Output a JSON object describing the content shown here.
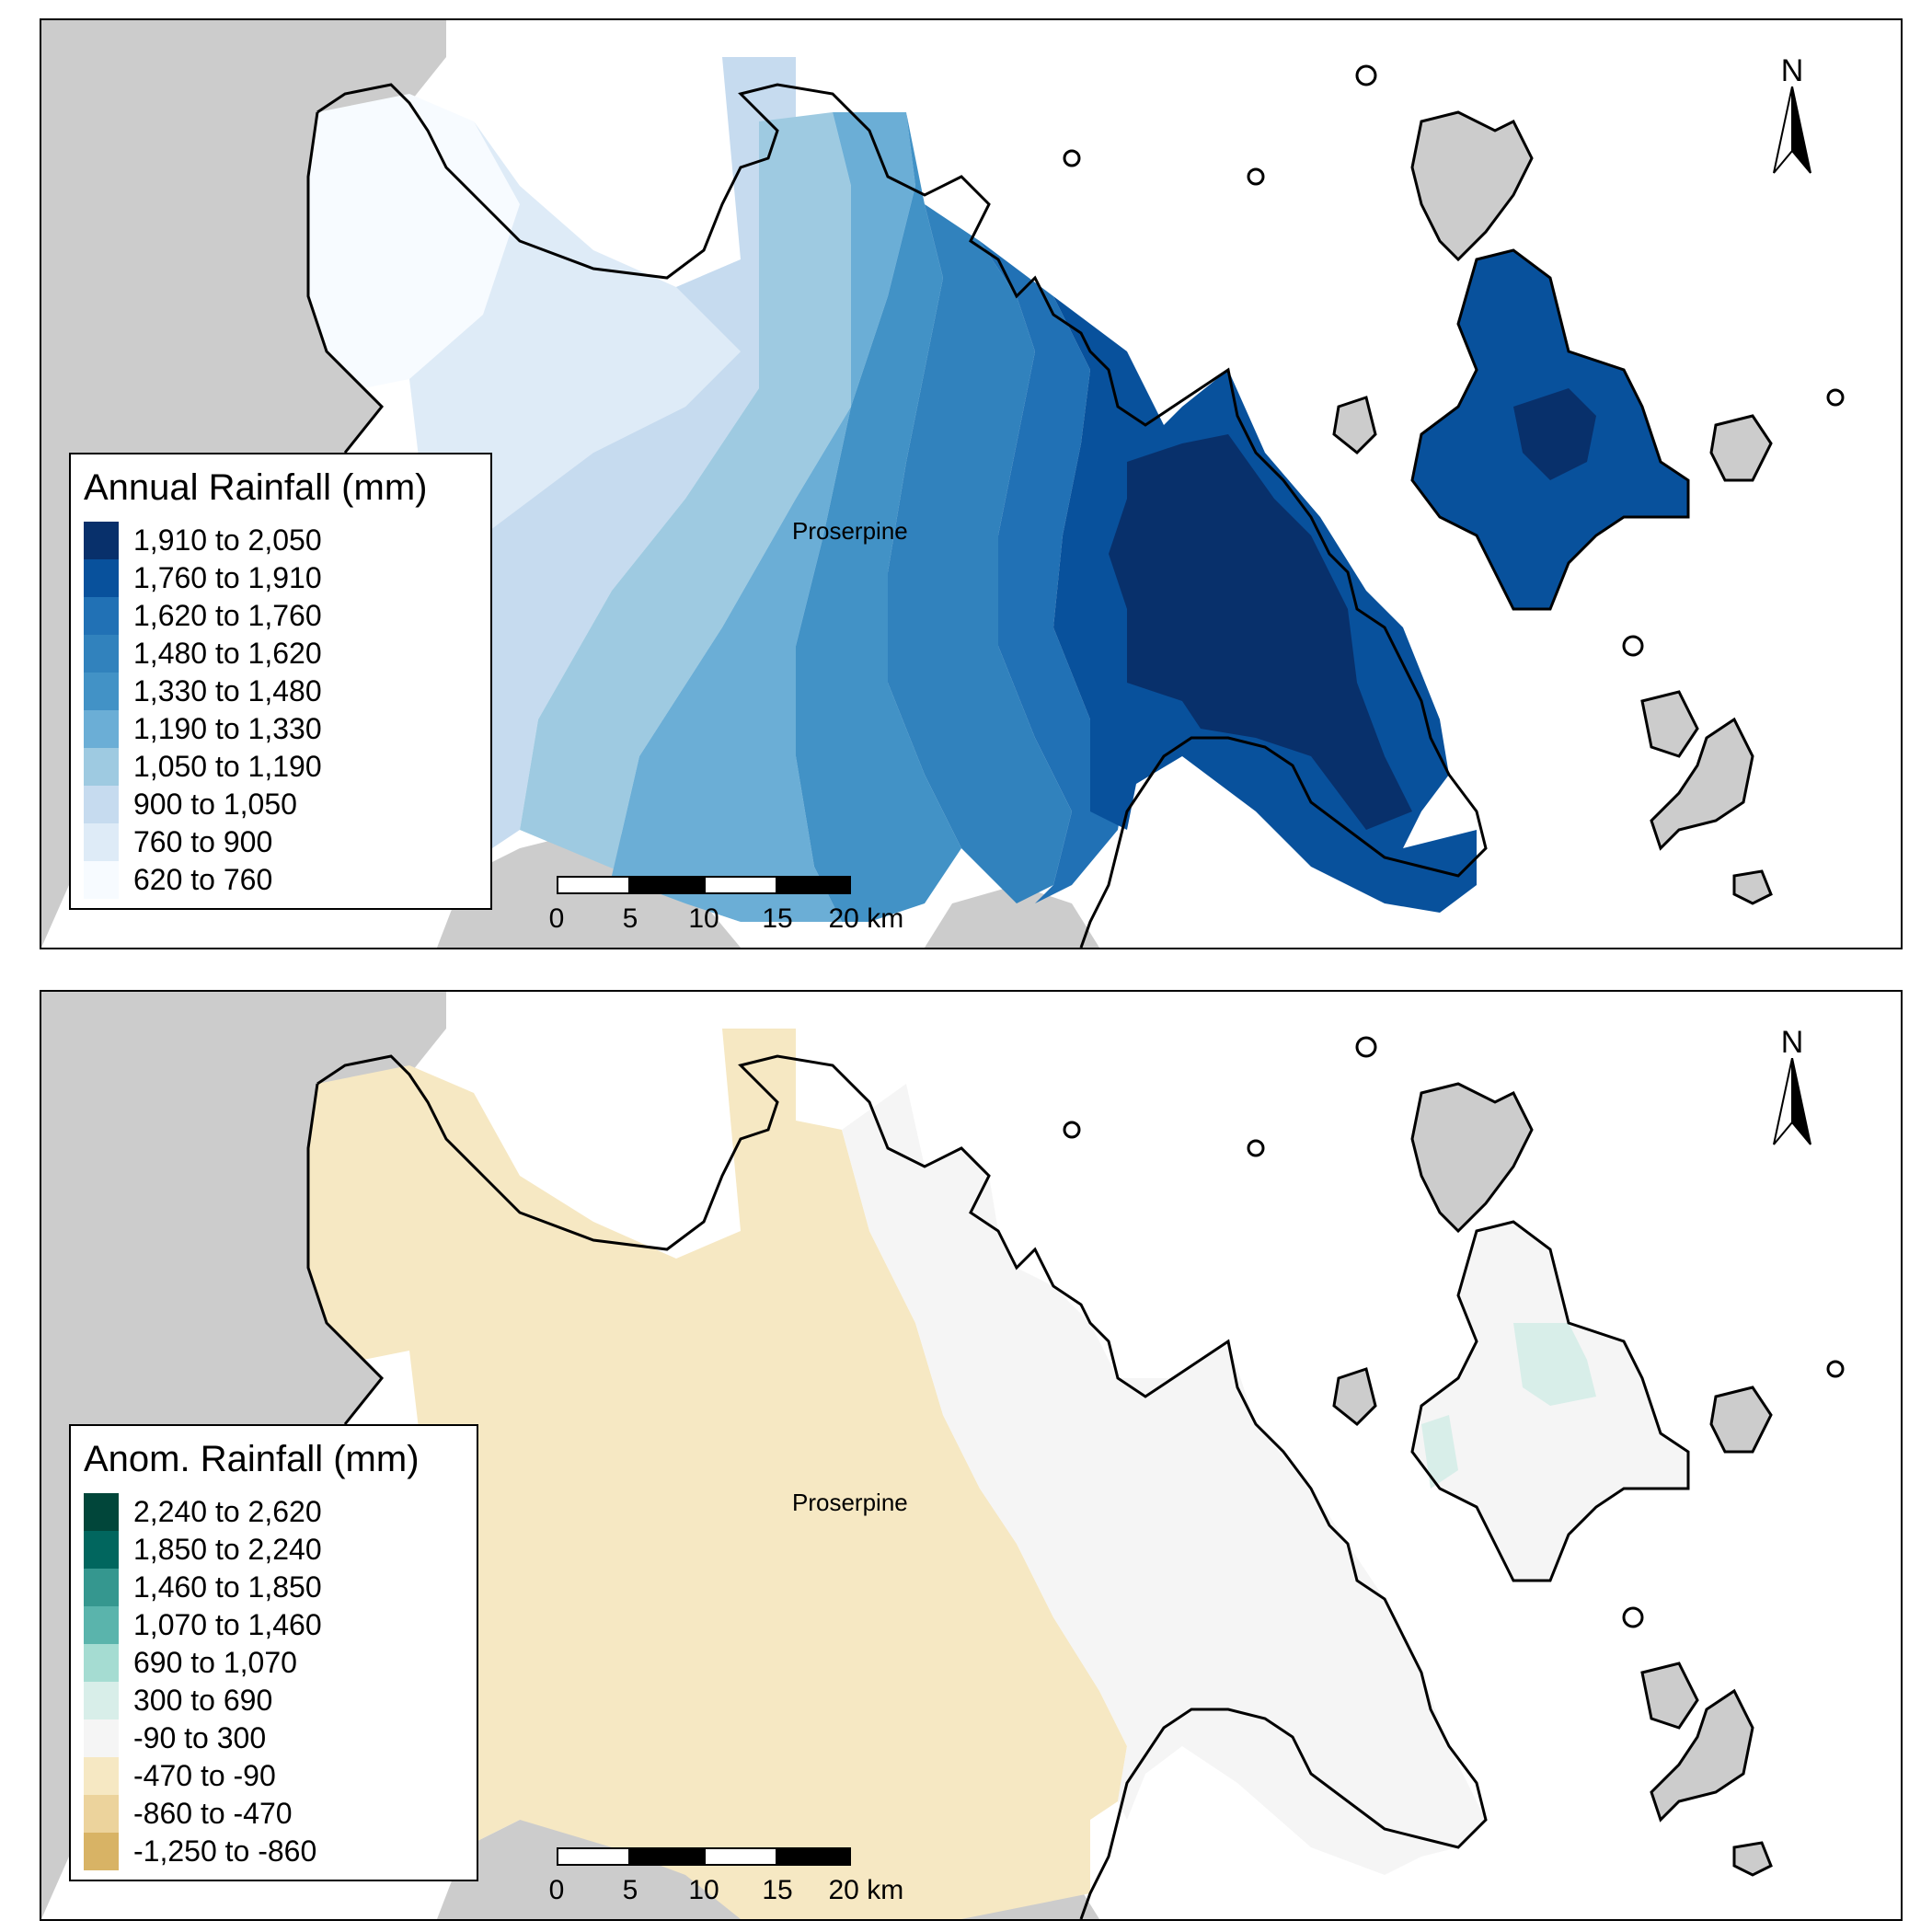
{
  "panels": [
    {
      "legend_title": "Annual Rainfall (mm)",
      "town_label": "Proserpine",
      "north_label": "N",
      "legend": [
        {
          "label": "1,910 to 2,050",
          "color": "#08306b"
        },
        {
          "label": "1,760 to 1,910",
          "color": "#08519c"
        },
        {
          "label": "1,620 to 1,760",
          "color": "#2171b5"
        },
        {
          "label": "1,480 to 1,620",
          "color": "#3182bd"
        },
        {
          "label": "1,330 to 1,480",
          "color": "#4292c6"
        },
        {
          "label": "1,190 to 1,330",
          "color": "#6baed6"
        },
        {
          "label": "1,050 to 1,190",
          "color": "#9ecae1"
        },
        {
          "label": "900 to 1,050",
          "color": "#c6dbef"
        },
        {
          "label": "760 to 900",
          "color": "#deebf7"
        },
        {
          "label": "620 to 760",
          "color": "#f7fbff"
        }
      ],
      "scale_ticks": [
        "0",
        "5",
        "10",
        "15",
        "20 km"
      ]
    },
    {
      "legend_title": "Anom. Rainfall (mm)",
      "town_label": "Proserpine",
      "north_label": "N",
      "legend": [
        {
          "label": "2,240 to 2,620",
          "color": "#01463a"
        },
        {
          "label": "1,850 to 2,240",
          "color": "#01665e"
        },
        {
          "label": "1,460 to 1,850",
          "color": "#35978f"
        },
        {
          "label": "1,070 to 1,460",
          "color": "#5ab4ac"
        },
        {
          "label": "690 to 1,070",
          "color": "#a5dcd2"
        },
        {
          "label": "300 to 690",
          "color": "#d8eee9"
        },
        {
          "label": "-90 to 300",
          "color": "#f5f5f5"
        },
        {
          "label": "-470 to -90",
          "color": "#f6e8c3"
        },
        {
          "label": "-860 to -470",
          "color": "#ecd39c"
        },
        {
          "label": "-1,250 to -860",
          "color": "#d8b365"
        }
      ],
      "scale_ticks": [
        "0",
        "5",
        "10",
        "15",
        "20 km"
      ]
    }
  ],
  "colors": {
    "land_outside": "#cccccc",
    "sea": "#ffffff",
    "outline": "#000000"
  }
}
